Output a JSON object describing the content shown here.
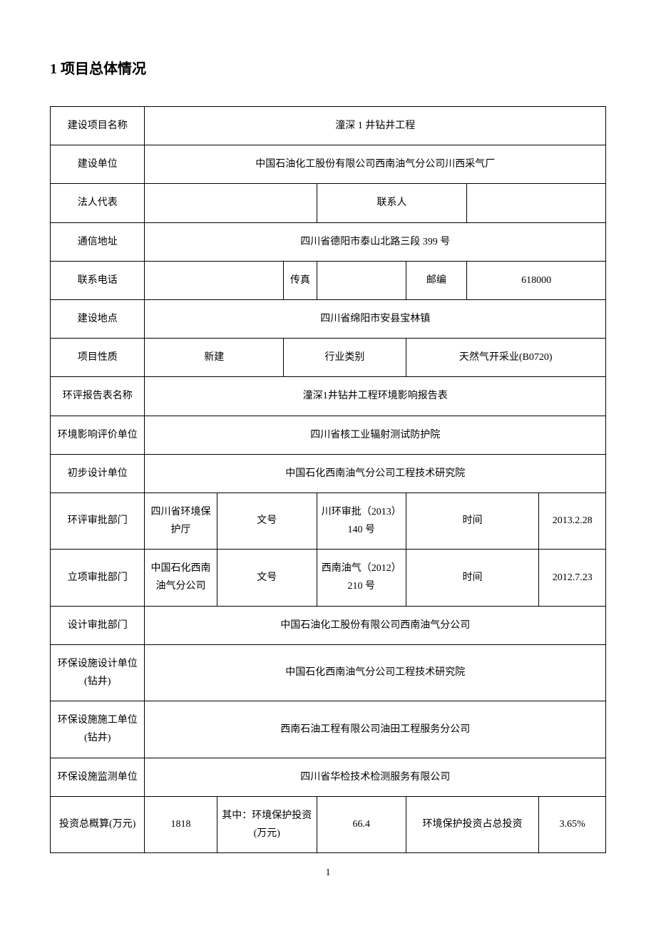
{
  "heading": "1 项目总体情况",
  "rows": {
    "project_name_label": "建设项目名称",
    "project_name": "潼深 1 井钻井工程",
    "builder_label": "建设单位",
    "builder": "中国石油化工股份有限公司西南油气分公司川西采气厂",
    "legal_rep_label": "法人代表",
    "legal_rep": "",
    "contact_label": "联系人",
    "contact": "",
    "address_label": "通信地址",
    "address": "四川省德阳市泰山北路三段 399 号",
    "phone_label": "联系电话",
    "phone": "",
    "fax_label": "传真",
    "fax": "",
    "postcode_label": "邮编",
    "postcode": "618000",
    "site_label": "建设地点",
    "site": "四川省绵阳市安县宝林镇",
    "nature_label": "项目性质",
    "nature": "新建",
    "industry_label": "行业类别",
    "industry": "天然气开采业(B0720)",
    "eia_name_label": "环评报告表名称",
    "eia_name": "潼深1井钻井工程环境影响报告表",
    "eia_unit_label": "环境影响评价单位",
    "eia_unit": "四川省核工业辐射测试防护院",
    "prelim_design_label": "初步设计单位",
    "prelim_design": "中国石化西南油气分公司工程技术研究院",
    "eia_approve_label": "环评审批部门",
    "eia_approve_dept": "四川省环境保护厅",
    "doc_no_label": "文号",
    "eia_doc_no": "川环审批（2013）140 号",
    "time_label": "时间",
    "eia_time": "2013.2.28",
    "proj_approve_label": "立项审批部门",
    "proj_approve_dept": "中国石化西南油气分公司",
    "proj_doc_no": "西南油气（2012）210 号",
    "proj_time": "2012.7.23",
    "design_approve_label": "设计审批部门",
    "design_approve": "中国石油化工股份有限公司西南油气分公司",
    "env_design_label": "环保设施设计单位(钻井)",
    "env_design": "中国石化西南油气分公司工程技术研究院",
    "env_construct_label": "环保设施施工单位(钻井)",
    "env_construct": "西南石油工程有限公司油田工程服务分公司",
    "env_monitor_label": "环保设施监测单位",
    "env_monitor": "四川省华检技术检测服务有限公司",
    "invest_label": "投资总概算(万元)",
    "invest_total": "1818",
    "env_invest_label": "其中：环境保护投资(万元)",
    "env_invest": "66.4",
    "env_ratio_label": "环境保护投资占总投资",
    "env_ratio": "3.65%"
  },
  "page_num": "1"
}
